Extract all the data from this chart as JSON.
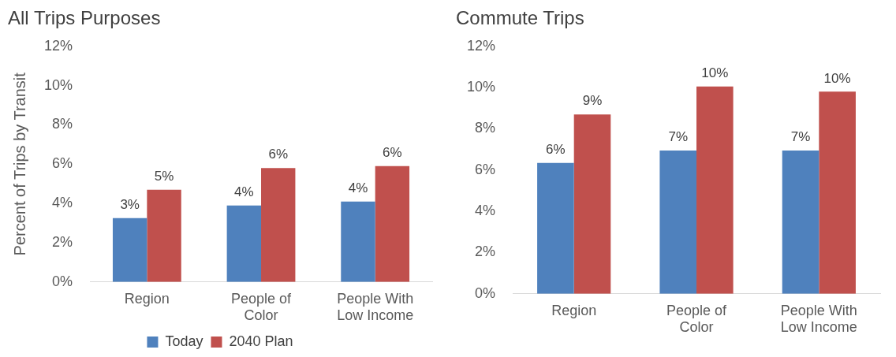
{
  "chart_data": [
    {
      "type": "bar",
      "title": "All Trips Purposes",
      "ylabel": "Percent of Trips by Transit",
      "categories": [
        "Region",
        "People of Color",
        "People With Low Income"
      ],
      "series": [
        {
          "name": "Today",
          "color": "#4f81bd",
          "values": [
            3.25,
            3.9,
            4.1
          ],
          "value_labels": [
            "3%",
            "4%",
            "4%"
          ]
        },
        {
          "name": "2040 Plan",
          "color": "#c0504d",
          "values": [
            4.7,
            5.8,
            5.9
          ],
          "value_labels": [
            "5%",
            "6%",
            "6%"
          ]
        }
      ],
      "ylim": [
        0,
        12
      ],
      "yticks": [
        {
          "value": 0,
          "label": "0%"
        },
        {
          "value": 2,
          "label": "2%"
        },
        {
          "value": 4,
          "label": "4%"
        },
        {
          "value": 6,
          "label": "6%"
        },
        {
          "value": 8,
          "label": "8%"
        },
        {
          "value": 10,
          "label": "10%"
        },
        {
          "value": 12,
          "label": "12%"
        }
      ],
      "legend": "bottom"
    },
    {
      "type": "bar",
      "title": "Commute Trips",
      "categories": [
        "Region",
        "People of Color",
        "People With Low Income"
      ],
      "series": [
        {
          "color": "#4f81bd",
          "values": [
            6.35,
            6.95,
            6.95
          ],
          "value_labels": [
            "6%",
            "7%",
            "7%"
          ]
        },
        {
          "color": "#c0504d",
          "values": [
            8.7,
            10.05,
            9.8
          ],
          "value_labels": [
            "9%",
            "10%",
            "10%"
          ]
        }
      ],
      "ylim": [
        0,
        12
      ],
      "yticks": [
        {
          "value": 0,
          "label": "0%"
        },
        {
          "value": 2,
          "label": "2%"
        },
        {
          "value": 4,
          "label": "4%"
        },
        {
          "value": 6,
          "label": "6%"
        },
        {
          "value": 8,
          "label": "8%"
        },
        {
          "value": 10,
          "label": "10%"
        },
        {
          "value": 12,
          "label": "12%"
        }
      ]
    }
  ]
}
